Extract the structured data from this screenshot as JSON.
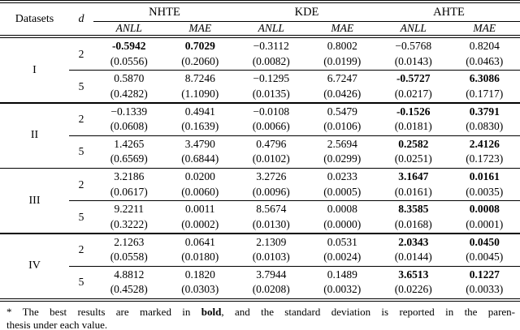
{
  "header": {
    "datasets": "Datasets",
    "d": "d",
    "groups": [
      "NHTE",
      "KDE",
      "AHTE"
    ],
    "subheaders": [
      "ANLL",
      "MAE",
      "ANLL",
      "MAE",
      "ANLL",
      "MAE"
    ]
  },
  "table_rows": [
    {
      "dataset": "I",
      "subrows": [
        {
          "d": "2",
          "cells": [
            {
              "value": "-0.5942",
              "std": "(0.0556)",
              "bold": true
            },
            {
              "value": "0.7029",
              "std": "(0.2060)",
              "bold": true
            },
            {
              "value": "−0.3112",
              "std": "(0.0082)",
              "bold": false
            },
            {
              "value": "0.8002",
              "std": "(0.0199)",
              "bold": false
            },
            {
              "value": "−0.5768",
              "std": "(0.0143)",
              "bold": false
            },
            {
              "value": "0.8204",
              "std": "(0.0463)",
              "bold": false
            }
          ]
        },
        {
          "d": "5",
          "cells": [
            {
              "value": "0.5870",
              "std": "(0.4282)",
              "bold": false
            },
            {
              "value": "8.7246",
              "std": "(1.1090)",
              "bold": false
            },
            {
              "value": "−0.1295",
              "std": "(0.0135)",
              "bold": false
            },
            {
              "value": "6.7247",
              "std": "(0.0426)",
              "bold": false
            },
            {
              "value": "-0.5727",
              "std": "(0.0217)",
              "bold": true
            },
            {
              "value": "6.3086",
              "std": "(0.1717)",
              "bold": true
            }
          ]
        }
      ]
    },
    {
      "dataset": "II",
      "subrows": [
        {
          "d": "2",
          "cells": [
            {
              "value": "−0.1339",
              "std": "(0.0608)",
              "bold": false
            },
            {
              "value": "0.4941",
              "std": "(0.1639)",
              "bold": false
            },
            {
              "value": "−0.0108",
              "std": "(0.0066)",
              "bold": false
            },
            {
              "value": "0.5479",
              "std": "(0.0106)",
              "bold": false
            },
            {
              "value": "-0.1526",
              "std": "(0.0181)",
              "bold": true
            },
            {
              "value": "0.3791",
              "std": "(0.0830)",
              "bold": true
            }
          ]
        },
        {
          "d": "5",
          "cells": [
            {
              "value": "1.4265",
              "std": "(0.6569)",
              "bold": false
            },
            {
              "value": "3.4790",
              "std": "(0.6844)",
              "bold": false
            },
            {
              "value": "0.4796",
              "std": "(0.0102)",
              "bold": false
            },
            {
              "value": "2.5694",
              "std": "(0.0299)",
              "bold": false
            },
            {
              "value": "0.2582",
              "std": "(0.0251)",
              "bold": true
            },
            {
              "value": "2.4126",
              "std": "(0.1723)",
              "bold": true
            }
          ]
        }
      ]
    },
    {
      "dataset": "III",
      "subrows": [
        {
          "d": "2",
          "cells": [
            {
              "value": "3.2186",
              "std": "(0.0617)",
              "bold": false
            },
            {
              "value": "0.0200",
              "std": "(0.0060)",
              "bold": false
            },
            {
              "value": "3.2726",
              "std": "(0.0096)",
              "bold": false
            },
            {
              "value": "0.0233",
              "std": "(0.0005)",
              "bold": false
            },
            {
              "value": "3.1647",
              "std": "(0.0161)",
              "bold": true
            },
            {
              "value": "0.0161",
              "std": "(0.0035)",
              "bold": true
            }
          ]
        },
        {
          "d": "5",
          "cells": [
            {
              "value": "9.2211",
              "std": "(0.3222)",
              "bold": false
            },
            {
              "value": "0.0011",
              "std": "(0.0002)",
              "bold": false
            },
            {
              "value": "8.5674",
              "std": "(0.0130)",
              "bold": false
            },
            {
              "value": "0.0008",
              "std": "(0.0000)",
              "bold": false
            },
            {
              "value": "8.3585",
              "std": "(0.0168)",
              "bold": true
            },
            {
              "value": "0.0008",
              "std": "(0.0001)",
              "bold": true
            }
          ]
        }
      ]
    },
    {
      "dataset": "IV",
      "subrows": [
        {
          "d": "2",
          "cells": [
            {
              "value": "2.1263",
              "std": "(0.0558)",
              "bold": false
            },
            {
              "value": "0.0641",
              "std": "(0.0180)",
              "bold": false
            },
            {
              "value": "2.1309",
              "std": "(0.0103)",
              "bold": false
            },
            {
              "value": "0.0531",
              "std": "(0.0024)",
              "bold": false
            },
            {
              "value": "2.0343",
              "std": "(0.0144)",
              "bold": true
            },
            {
              "value": "0.0450",
              "std": "(0.0045)",
              "bold": true
            }
          ]
        },
        {
          "d": "5",
          "cells": [
            {
              "value": "4.8812",
              "std": "(0.4528)",
              "bold": false
            },
            {
              "value": "0.1820",
              "std": "(0.0303)",
              "bold": false
            },
            {
              "value": "3.7944",
              "std": "(0.0208)",
              "bold": false
            },
            {
              "value": "0.1489",
              "std": "(0.0032)",
              "bold": false
            },
            {
              "value": "3.6513",
              "std": "(0.0226)",
              "bold": true
            },
            {
              "value": "0.1227",
              "std": "(0.0033)",
              "bold": true
            }
          ]
        }
      ]
    }
  ],
  "footnote": {
    "marker": "*",
    "line1_prefix": " The best results are marked in ",
    "bold_word": "bold",
    "line1_suffix": ", and the standard deviation is reported in the paren-",
    "line2": "thesis under each value."
  }
}
